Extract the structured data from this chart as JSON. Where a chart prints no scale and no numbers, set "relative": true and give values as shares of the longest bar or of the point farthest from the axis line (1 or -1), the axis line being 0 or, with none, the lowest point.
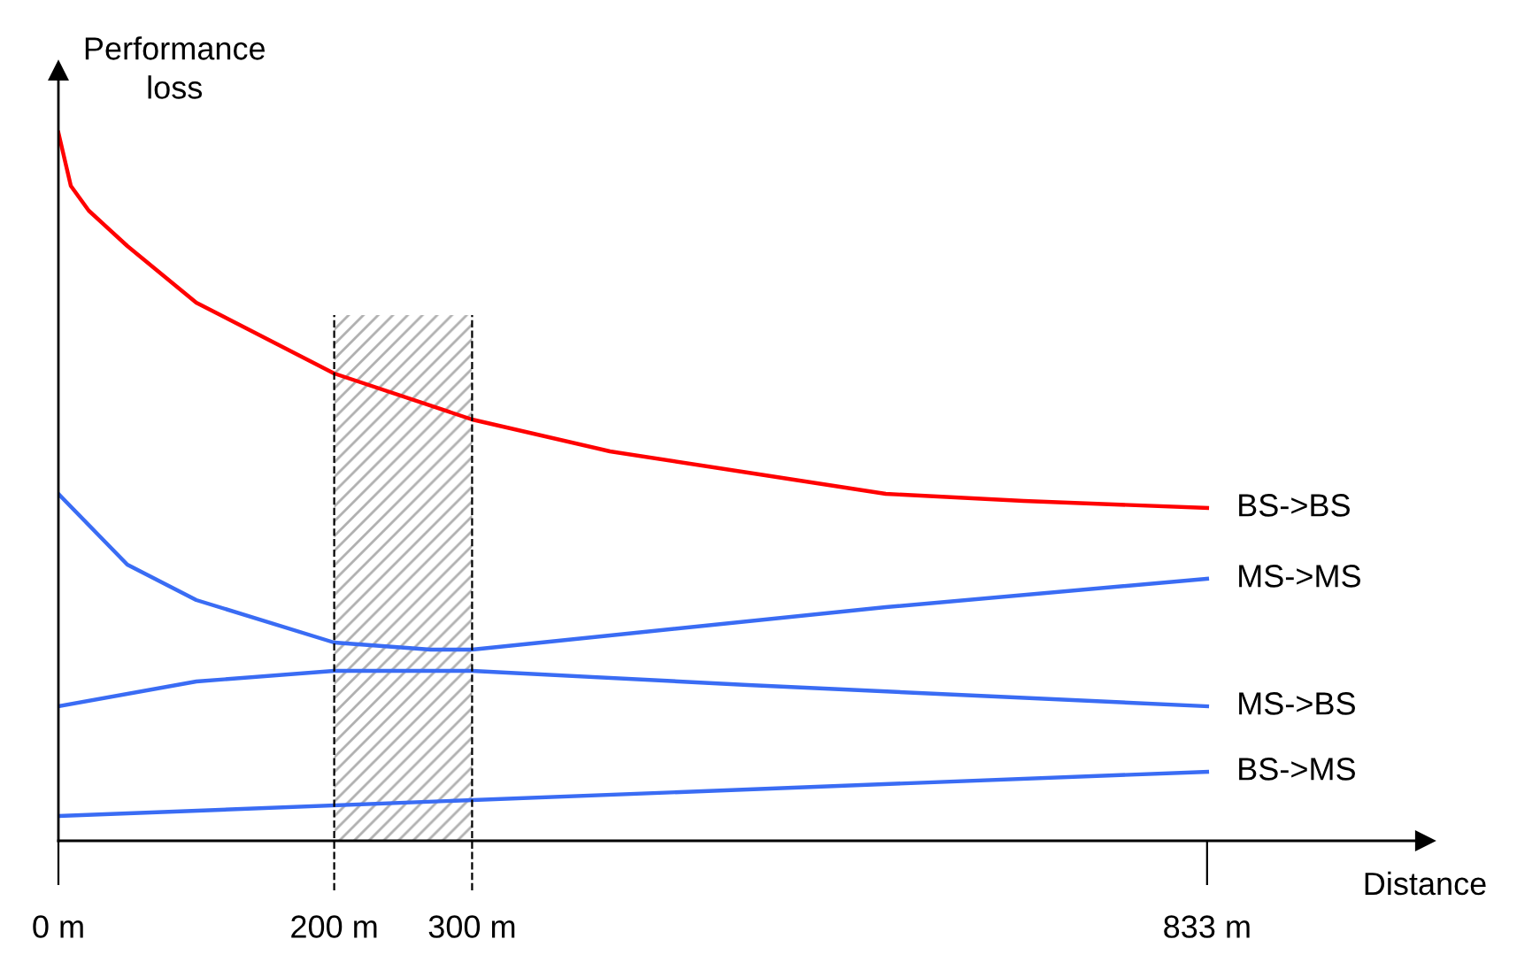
{
  "chart_data": {
    "type": "line",
    "relative": true,
    "xlabel": "Distance",
    "ylabel": "Performance\nloss",
    "xlim": [
      0,
      991
    ],
    "xticks": [
      {
        "value": 0,
        "label": "0 m"
      },
      {
        "value": 200,
        "label": "200 m"
      },
      {
        "value": 300,
        "label": "300 m"
      },
      {
        "value": 833,
        "label": "833 m"
      }
    ],
    "series": [
      {
        "name": "BS->BS",
        "color": "#ff0000",
        "x": [
          0,
          9,
          22,
          50,
          100,
          200,
          300,
          400,
          500,
          600,
          700,
          833
        ],
        "values": [
          1.0,
          0.925,
          0.89,
          0.84,
          0.76,
          0.66,
          0.595,
          0.55,
          0.52,
          0.49,
          0.48,
          0.47
        ]
      },
      {
        "name": "MS->MS",
        "color": "#3a6cf4",
        "x": [
          0,
          50,
          100,
          200,
          270,
          300,
          400,
          600,
          833
        ],
        "values": [
          0.49,
          0.39,
          0.34,
          0.28,
          0.27,
          0.27,
          0.29,
          0.33,
          0.37
        ]
      },
      {
        "name": "MS->BS",
        "color": "#3a6cf4",
        "x": [
          0,
          100,
          200,
          300,
          500,
          833
        ],
        "values": [
          0.19,
          0.225,
          0.24,
          0.24,
          0.22,
          0.19
        ]
      },
      {
        "name": "BS->MS",
        "color": "#3a6cf4",
        "x": [
          0,
          833
        ],
        "values": [
          0.035,
          0.0975
        ]
      }
    ],
    "bands": [
      {
        "axis": "x",
        "from": 200,
        "to": 300,
        "color": "#b0b0b0"
      }
    ],
    "ref_lines": [
      {
        "axis": "x",
        "value": 200,
        "line_style": "dashed",
        "color": "#000000"
      },
      {
        "axis": "x",
        "value": 300,
        "line_style": "dashed",
        "color": "#000000"
      }
    ],
    "legend": false,
    "marker": "none",
    "line_style": "solid"
  }
}
